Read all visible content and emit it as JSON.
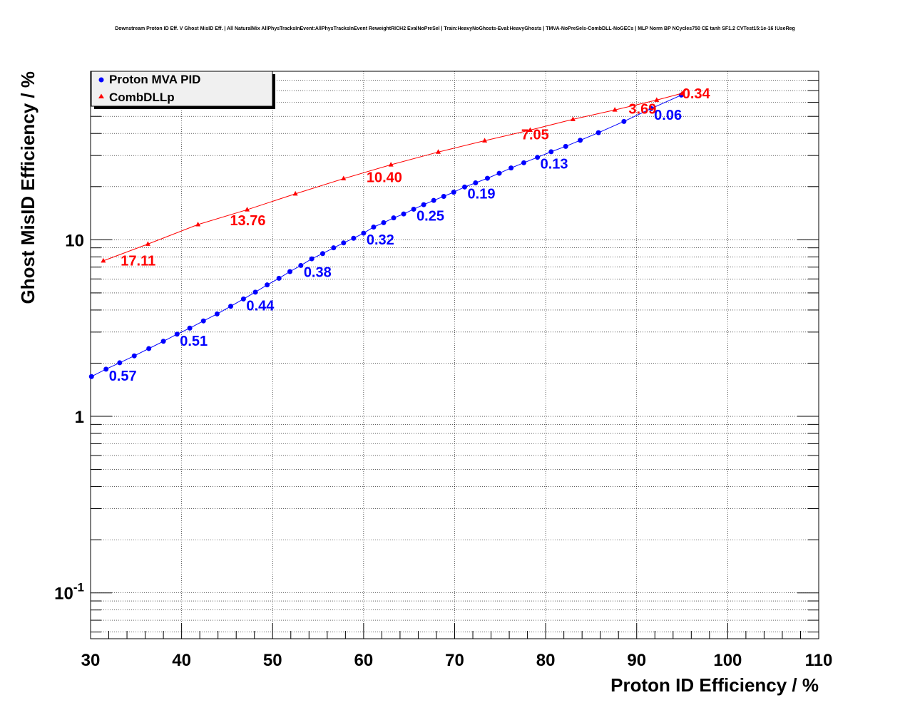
{
  "chart_data": {
    "type": "line",
    "title": "Downstream Proton ID Eff. V Ghost MisID Eff. | All NaturalMix AllPhysTracksInEvent:AllPhysTracksInEvent ReweightRICH2 EvalNoPreSel | Train:HeavyNoGhosts-Eval:HeavyGhosts | TMVA-NoPreSels-CombDLL-NoGECs | MLP Norm BP NCycles750 CE tanh SF1.2 CVTest15:1e-16 !UseReg",
    "xlabel": "Proton ID Efficiency / %",
    "ylabel": "Ghost MisID Efficiency / %",
    "xlim": [
      30,
      110
    ],
    "ylim": [
      0.055,
      90
    ],
    "yscale": "log",
    "grid": true,
    "legend_position": "top-left",
    "x_ticks": [
      "30",
      "40",
      "50",
      "60",
      "70",
      "80",
      "90",
      "100",
      "110"
    ],
    "y_ticks": [
      {
        "base": "10",
        "exp": "-1",
        "value": 0.1
      },
      {
        "base": "1",
        "exp": "",
        "value": 1
      },
      {
        "base": "10",
        "exp": "",
        "value": 10
      }
    ],
    "series": [
      {
        "name": "Proton MVA PID",
        "color": "#0000ff",
        "marker": "circle",
        "x": [
          30.1,
          31.7,
          33.2,
          34.8,
          36.4,
          38.0,
          39.5,
          40.9,
          42.4,
          43.9,
          45.4,
          46.8,
          48.1,
          49.4,
          50.7,
          51.9,
          53.1,
          54.3,
          55.5,
          56.7,
          57.8,
          58.9,
          60.0,
          61.1,
          62.2,
          63.3,
          64.4,
          65.5,
          66.6,
          67.7,
          68.8,
          69.9,
          71.1,
          72.3,
          73.6,
          74.9,
          76.2,
          77.6,
          79.1,
          80.6,
          82.2,
          83.8,
          85.8,
          88.6,
          91.6,
          94.9
        ],
        "y": [
          1.68,
          1.85,
          2.01,
          2.2,
          2.42,
          2.66,
          2.92,
          3.16,
          3.47,
          3.8,
          4.2,
          4.62,
          5.05,
          5.55,
          6.05,
          6.6,
          7.15,
          7.8,
          8.35,
          9.0,
          9.6,
          10.2,
          10.9,
          11.8,
          12.5,
          13.3,
          14.0,
          14.9,
          15.8,
          16.7,
          17.6,
          18.6,
          19.9,
          21.0,
          22.3,
          23.8,
          25.5,
          27.3,
          29.3,
          31.5,
          33.8,
          36.6,
          40.4,
          46.8,
          55.4,
          66.0
        ],
        "labels": [
          {
            "text": "0.57",
            "x": 31.7,
            "y": 1.85
          },
          {
            "text": "0.51",
            "x": 39.5,
            "y": 2.92
          },
          {
            "text": "0.44",
            "x": 46.8,
            "y": 4.62
          },
          {
            "text": "0.38",
            "x": 53.1,
            "y": 7.15
          },
          {
            "text": "0.32",
            "x": 60.0,
            "y": 10.9
          },
          {
            "text": "0.25",
            "x": 65.5,
            "y": 14.9
          },
          {
            "text": "0.19",
            "x": 71.1,
            "y": 19.9
          },
          {
            "text": "0.13",
            "x": 79.1,
            "y": 29.3
          },
          {
            "text": "0.06",
            "x": 91.6,
            "y": 55.4
          }
        ]
      },
      {
        "name": "CombDLLp",
        "color": "#ff0000",
        "marker": "triangle",
        "x": [
          31.4,
          36.3,
          41.8,
          47.2,
          52.5,
          57.8,
          63.0,
          68.2,
          73.3,
          78.3,
          83.0,
          87.6,
          92.2,
          95.0
        ],
        "y": [
          7.6,
          9.45,
          12.2,
          14.8,
          18.2,
          22.2,
          26.6,
          31.4,
          36.4,
          41.8,
          48.1,
          54.4,
          61.8,
          67.5
        ],
        "labels": [
          {
            "text": "17.11",
            "x": 33.0,
            "y": 8.3
          },
          {
            "text": "13.76",
            "x": 45.0,
            "y": 14.0
          },
          {
            "text": "10.40",
            "x": 60.0,
            "y": 24.6
          },
          {
            "text": "7.05",
            "x": 77.0,
            "y": 43.0
          },
          {
            "text": "3.69",
            "x": 88.8,
            "y": 60.0
          },
          {
            "text": "0.34",
            "x": 94.7,
            "y": 73.5
          }
        ]
      }
    ]
  }
}
